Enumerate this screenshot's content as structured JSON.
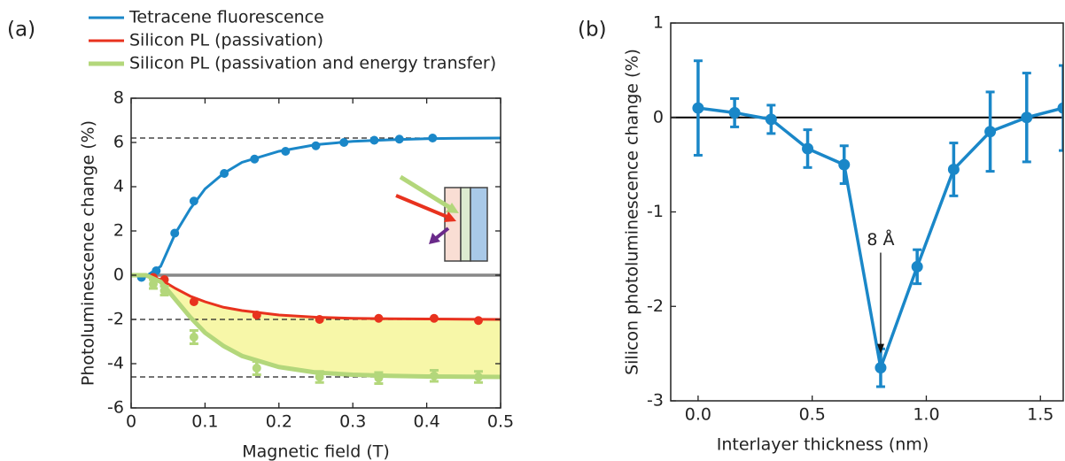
{
  "chart_data": [
    {
      "type": "line",
      "panel_label": "(a)",
      "y_label": "Photoluminescence change (%)",
      "x_label": "Magnetic field (T)",
      "xlim": [
        0,
        0.5
      ],
      "ylim": [
        -6,
        8
      ],
      "xticks": [
        0,
        0.1,
        0.2,
        0.3,
        0.4,
        0.5
      ],
      "yticks": [
        -6,
        -4,
        -2,
        0,
        2,
        4,
        6,
        8
      ],
      "legend": "top left",
      "zero_line": "#888888",
      "reference_lines": [
        6.2,
        -2,
        -4.6
      ],
      "fill_between": {
        "series": [
          1,
          2
        ],
        "color": "#f7f7a8"
      },
      "fit_x": [
        0,
        0.02,
        0.04,
        0.06,
        0.08,
        0.1,
        0.125,
        0.15,
        0.2,
        0.25,
        0.3,
        0.35,
        0.4,
        0.45,
        0.5
      ],
      "series": [
        {
          "name": "Tetracene fluorescence",
          "color": "#1a87c8",
          "x": [
            0.014,
            0.034,
            0.059,
            0.085,
            0.126,
            0.167,
            0.209,
            0.25,
            0.288,
            0.329,
            0.363,
            0.408
          ],
          "values": [
            -0.1,
            0.2,
            1.9,
            3.35,
            4.6,
            5.25,
            5.6,
            5.85,
            6.0,
            6.1,
            6.15,
            6.2
          ],
          "fit": [
            0,
            -0.05,
            0.4,
            1.9,
            3.0,
            3.9,
            4.6,
            5.1,
            5.6,
            5.9,
            6.05,
            6.12,
            6.17,
            6.19,
            6.2
          ]
        },
        {
          "name": "Silicon PL (passivation)",
          "color": "#e8321e",
          "x": [
            0.03,
            0.045,
            0.085,
            0.17,
            0.255,
            0.335,
            0.41,
            0.47
          ],
          "values": [
            -0.1,
            -0.2,
            -1.2,
            -1.8,
            -2.0,
            -1.95,
            -1.95,
            -2.05
          ],
          "fit": [
            0,
            0,
            -0.2,
            -0.6,
            -0.95,
            -1.2,
            -1.45,
            -1.6,
            -1.8,
            -1.9,
            -1.95,
            -1.97,
            -1.98,
            -1.99,
            -2.0
          ]
        },
        {
          "name": "Silicon PL (passivation and energy transfer)",
          "color": "#b3d77b",
          "x": [
            0.03,
            0.045,
            0.085,
            0.17,
            0.255,
            0.335,
            0.41,
            0.47
          ],
          "values": [
            -0.4,
            -0.7,
            -2.8,
            -4.2,
            -4.6,
            -4.65,
            -4.55,
            -4.6
          ],
          "errors": [
            0.2,
            0.2,
            0.3,
            0.3,
            0.25,
            0.25,
            0.25,
            0.25
          ],
          "fit": [
            0,
            0,
            -0.3,
            -1.1,
            -1.9,
            -2.6,
            -3.2,
            -3.65,
            -4.15,
            -4.4,
            -4.5,
            -4.55,
            -4.58,
            -4.59,
            -4.6
          ]
        }
      ]
    },
    {
      "type": "line",
      "panel_label": "(b)",
      "y_label": "Silicon photoluminescence change (%)",
      "x_label": "Interlayer thickness (nm)",
      "xlim": [
        -0.12,
        1.6
      ],
      "ylim": [
        -3,
        1
      ],
      "xticks": [
        {
          "value": 0,
          "label": "0.0"
        },
        0.5,
        {
          "value": 1,
          "label": "1.0"
        },
        1.5
      ],
      "yticks": [
        -3,
        -2,
        -1,
        0,
        1
      ],
      "zero_line": "#000000",
      "annotation": {
        "text": "8 Å",
        "x": 0.8,
        "y": -1.3,
        "arrow_to": [
          0.8,
          -2.5
        ]
      },
      "series": [
        {
          "color": "#1a87c8",
          "x": [
            0,
            0.16,
            0.32,
            0.48,
            0.64,
            0.8,
            0.96,
            1.12,
            1.28,
            1.44,
            1.6
          ],
          "values": [
            0.1,
            0.05,
            -0.02,
            -0.33,
            -0.5,
            -2.65,
            -1.58,
            -0.55,
            -0.15,
            0.0,
            0.1
          ],
          "errors": [
            0.5,
            0.15,
            0.15,
            0.2,
            0.2,
            0.2,
            0.18,
            0.28,
            0.42,
            0.47,
            0.45
          ]
        }
      ]
    }
  ]
}
